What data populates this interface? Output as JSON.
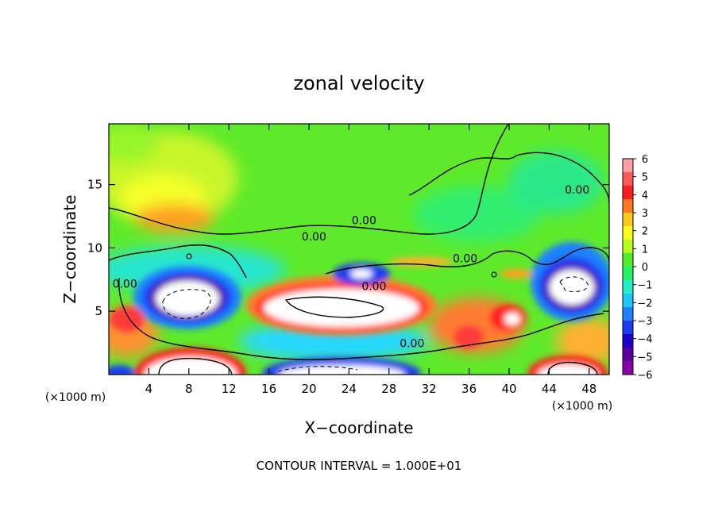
{
  "chart_data": {
    "type": "heatmap",
    "title": "zonal velocity",
    "xlabel": "X−coordinate",
    "ylabel": "Z−coordinate",
    "x_unit_label": "(×1000 m)",
    "z_unit_label": "(×1000 m)",
    "xlim": [
      0,
      50
    ],
    "ylim": [
      0,
      19.8
    ],
    "x_ticks": [
      4,
      8,
      12,
      16,
      20,
      24,
      28,
      32,
      36,
      40,
      44,
      48
    ],
    "y_ticks": [
      5,
      10,
      15
    ],
    "colorbar": {
      "ticks": [
        6,
        5,
        4,
        3,
        2,
        1,
        0,
        -1,
        -2,
        -3,
        -4,
        -5,
        -6
      ],
      "range": [
        -6,
        6
      ],
      "colors": [
        "#ff9ea6",
        "#ff5a5a",
        "#ff1e1e",
        "#ff7a1e",
        "#ffc81e",
        "#f8ff1e",
        "#b4ff1e",
        "#50ee28",
        "#28f064",
        "#23f0c8",
        "#1ec8ff",
        "#1e82ff",
        "#1e3cf0",
        "#1e00c8",
        "#5a00a0",
        "#8c00aa"
      ]
    },
    "contour_labels": [
      {
        "text": "0.00",
        "x": 20.5,
        "y": 10.7
      },
      {
        "text": "0.00",
        "x": 25.5,
        "y": 12.0
      },
      {
        "text": "0.00",
        "x": 35.6,
        "y": 9.0
      },
      {
        "text": "0.00",
        "x": 46.8,
        "y": 14.4
      },
      {
        "text": "0.00",
        "x": 1.6,
        "y": 7.0
      },
      {
        "text": "0.00",
        "x": 26.5,
        "y": 6.8
      },
      {
        "text": "0.00",
        "x": 30.3,
        "y": 2.3
      }
    ],
    "footer": "CONTOUR INTERVAL = 1.000E+01"
  }
}
